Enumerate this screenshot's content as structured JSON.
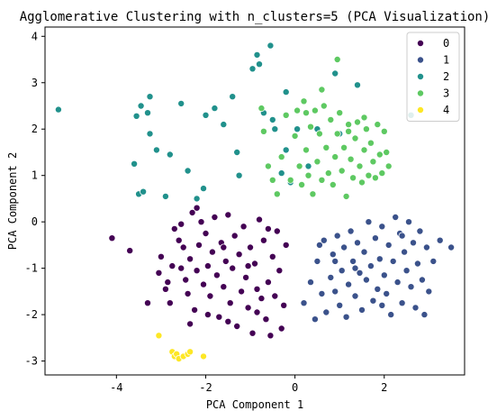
{
  "chart_data": {
    "type": "scatter",
    "title": "Agglomerative Clustering with n_clusters=5 (PCA Visualization)",
    "xlabel": "PCA Component 1",
    "ylabel": "PCA Component 2",
    "xlim": [
      -5.6,
      3.8
    ],
    "ylim": [
      -3.3,
      4.2
    ],
    "xticks": [
      -4,
      -2,
      0,
      2
    ],
    "yticks": [
      -3,
      -2,
      -1,
      0,
      1,
      2,
      3,
      4
    ],
    "grid": false,
    "legend_position": "top-right",
    "series": [
      {
        "name": "0",
        "color": "#440154",
        "points": [
          [
            -4.1,
            -0.35
          ],
          [
            -3.7,
            -0.62
          ],
          [
            -3.3,
            -1.75
          ],
          [
            -3.05,
            -1.1
          ],
          [
            -3.0,
            -0.75
          ],
          [
            -2.9,
            -1.45
          ],
          [
            -2.85,
            -1.3
          ],
          [
            -2.75,
            -0.95
          ],
          [
            -2.7,
            -0.15
          ],
          [
            -2.6,
            -0.4
          ],
          [
            -2.55,
            -1.0
          ],
          [
            -2.5,
            -0.55
          ],
          [
            -2.45,
            -1.25
          ],
          [
            -2.4,
            -1.55
          ],
          [
            -2.35,
            -0.8
          ],
          [
            -2.3,
            0.2
          ],
          [
            -2.25,
            -1.9
          ],
          [
            -2.2,
            -1.05
          ],
          [
            -2.15,
            -0.5
          ],
          [
            -2.1,
            0.0
          ],
          [
            -2.05,
            -1.35
          ],
          [
            -2.0,
            -0.25
          ],
          [
            -1.95,
            -0.95
          ],
          [
            -1.9,
            -1.6
          ],
          [
            -1.85,
            -0.65
          ],
          [
            -1.8,
            0.1
          ],
          [
            -1.75,
            -1.15
          ],
          [
            -1.7,
            -2.05
          ],
          [
            -1.65,
            -0.45
          ],
          [
            -1.6,
            -1.4
          ],
          [
            -1.55,
            -0.85
          ],
          [
            -1.5,
            0.15
          ],
          [
            -1.45,
            -1.75
          ],
          [
            -1.4,
            -1.0
          ],
          [
            -1.35,
            -0.3
          ],
          [
            -1.3,
            -2.25
          ],
          [
            -1.25,
            -0.7
          ],
          [
            -1.2,
            -1.5
          ],
          [
            -1.15,
            -0.1
          ],
          [
            -1.1,
            -1.2
          ],
          [
            -1.05,
            -1.85
          ],
          [
            -1.0,
            -0.55
          ],
          [
            -0.95,
            -2.4
          ],
          [
            -0.9,
            -0.9
          ],
          [
            -0.85,
            -1.45
          ],
          [
            -0.8,
            0.05
          ],
          [
            -0.75,
            -1.65
          ],
          [
            -0.7,
            -0.4
          ],
          [
            -0.65,
            -2.1
          ],
          [
            -0.6,
            -1.3
          ],
          [
            -0.55,
            -2.45
          ],
          [
            -0.5,
            -0.75
          ],
          [
            -0.45,
            -1.6
          ],
          [
            -0.4,
            -0.2
          ],
          [
            -0.35,
            -1.05
          ],
          [
            -0.3,
            -2.3
          ],
          [
            -0.25,
            -1.8
          ],
          [
            -0.2,
            -0.5
          ],
          [
            -2.55,
            -0.05
          ],
          [
            -2.2,
            0.3
          ],
          [
            -1.6,
            -0.55
          ],
          [
            -1.05,
            -0.95
          ],
          [
            -0.6,
            -0.15
          ],
          [
            -2.8,
            -1.75
          ],
          [
            -2.35,
            -2.2
          ],
          [
            -1.95,
            -2.0
          ],
          [
            -1.5,
            -2.15
          ],
          [
            -0.85,
            -1.95
          ]
        ]
      },
      {
        "name": "1",
        "color": "#3b528b",
        "points": [
          [
            0.2,
            -1.75
          ],
          [
            0.35,
            -1.3
          ],
          [
            0.45,
            -2.1
          ],
          [
            0.5,
            -0.85
          ],
          [
            0.6,
            -1.55
          ],
          [
            0.65,
            -0.4
          ],
          [
            0.7,
            -1.95
          ],
          [
            0.8,
            -1.2
          ],
          [
            0.85,
            -0.7
          ],
          [
            0.9,
            -1.5
          ],
          [
            0.95,
            -0.3
          ],
          [
            1.0,
            -1.8
          ],
          [
            1.05,
            -1.05
          ],
          [
            1.1,
            -0.55
          ],
          [
            1.15,
            -2.05
          ],
          [
            1.2,
            -1.35
          ],
          [
            1.25,
            -0.2
          ],
          [
            1.3,
            -0.85
          ],
          [
            1.35,
            -1.6
          ],
          [
            1.4,
            -0.45
          ],
          [
            1.45,
            -1.1
          ],
          [
            1.5,
            -1.9
          ],
          [
            1.55,
            -0.65
          ],
          [
            1.6,
            -1.25
          ],
          [
            1.65,
            0.0
          ],
          [
            1.7,
            -0.95
          ],
          [
            1.75,
            -1.7
          ],
          [
            1.8,
            -0.35
          ],
          [
            1.85,
            -1.45
          ],
          [
            1.9,
            -0.8
          ],
          [
            1.95,
            -0.1
          ],
          [
            2.0,
            -1.15
          ],
          [
            2.05,
            -1.55
          ],
          [
            2.1,
            -0.5
          ],
          [
            2.15,
            -2.0
          ],
          [
            2.2,
            -0.85
          ],
          [
            2.25,
            0.1
          ],
          [
            2.3,
            -1.3
          ],
          [
            2.35,
            -0.25
          ],
          [
            2.4,
            -1.75
          ],
          [
            2.45,
            -0.65
          ],
          [
            2.5,
            -1.05
          ],
          [
            2.55,
            0.0
          ],
          [
            2.6,
            -1.4
          ],
          [
            2.65,
            -0.45
          ],
          [
            2.7,
            -1.85
          ],
          [
            2.75,
            -0.9
          ],
          [
            2.8,
            -0.2
          ],
          [
            2.85,
            -1.25
          ],
          [
            2.9,
            -2.0
          ],
          [
            2.95,
            -0.55
          ],
          [
            3.0,
            -1.5
          ],
          [
            3.1,
            -0.85
          ],
          [
            3.25,
            -0.4
          ],
          [
            3.5,
            -0.55
          ],
          [
            0.55,
            -0.5
          ],
          [
            1.35,
            -1.0
          ],
          [
            2.4,
            -0.3
          ],
          [
            1.95,
            -1.8
          ],
          [
            0.9,
            -0.85
          ]
        ]
      },
      {
        "name": "2",
        "color": "#21918c",
        "points": [
          [
            -5.3,
            2.42
          ],
          [
            -3.6,
            1.25
          ],
          [
            -3.55,
            2.28
          ],
          [
            -3.5,
            0.6
          ],
          [
            -3.45,
            2.5
          ],
          [
            -3.4,
            0.65
          ],
          [
            -3.3,
            2.35
          ],
          [
            -3.25,
            2.7
          ],
          [
            -3.25,
            1.9
          ],
          [
            -3.1,
            1.55
          ],
          [
            -2.9,
            0.55
          ],
          [
            -2.8,
            1.45
          ],
          [
            -2.55,
            2.55
          ],
          [
            -2.4,
            1.1
          ],
          [
            -2.2,
            0.5
          ],
          [
            -2.05,
            0.72
          ],
          [
            -2.0,
            2.3
          ],
          [
            -1.8,
            2.45
          ],
          [
            -1.6,
            2.1
          ],
          [
            -1.4,
            2.7
          ],
          [
            -1.3,
            1.5
          ],
          [
            -1.25,
            1.0
          ],
          [
            -0.95,
            3.3
          ],
          [
            -0.8,
            3.4
          ],
          [
            -0.7,
            2.35
          ],
          [
            -0.5,
            2.2
          ],
          [
            -0.45,
            2.0
          ],
          [
            -0.3,
            1.05
          ],
          [
            -0.2,
            1.55
          ],
          [
            -0.1,
            0.85
          ],
          [
            0.05,
            2.0
          ],
          [
            0.3,
            1.2
          ],
          [
            0.5,
            2.0
          ],
          [
            0.9,
            3.2
          ],
          [
            1.0,
            1.9
          ],
          [
            1.4,
            2.95
          ],
          [
            -0.55,
            3.8
          ],
          [
            2.6,
            2.3
          ],
          [
            -0.2,
            2.8
          ],
          [
            -0.85,
            3.6
          ]
        ]
      },
      {
        "name": "3",
        "color": "#5ec962",
        "points": [
          [
            -0.75,
            2.45
          ],
          [
            -0.7,
            1.95
          ],
          [
            -0.6,
            1.2
          ],
          [
            -0.5,
            0.9
          ],
          [
            -0.4,
            0.6
          ],
          [
            -0.3,
            1.4
          ],
          [
            -0.2,
            2.3
          ],
          [
            -0.1,
            0.9
          ],
          [
            0.0,
            1.85
          ],
          [
            0.05,
            2.4
          ],
          [
            0.1,
            1.2
          ],
          [
            0.15,
            0.8
          ],
          [
            0.2,
            2.6
          ],
          [
            0.25,
            1.55
          ],
          [
            0.3,
            1.0
          ],
          [
            0.35,
            2.05
          ],
          [
            0.4,
            0.6
          ],
          [
            0.45,
            2.4
          ],
          [
            0.5,
            1.3
          ],
          [
            0.55,
            1.9
          ],
          [
            0.6,
            0.9
          ],
          [
            0.65,
            2.5
          ],
          [
            0.7,
            1.6
          ],
          [
            0.75,
            1.05
          ],
          [
            0.8,
            2.2
          ],
          [
            0.85,
            0.8
          ],
          [
            0.9,
            1.4
          ],
          [
            0.95,
            1.9
          ],
          [
            1.0,
            2.35
          ],
          [
            1.05,
            1.1
          ],
          [
            1.1,
            1.6
          ],
          [
            1.15,
            0.55
          ],
          [
            1.2,
            2.1
          ],
          [
            1.25,
            1.35
          ],
          [
            1.3,
            0.95
          ],
          [
            1.35,
            1.8
          ],
          [
            1.4,
            2.15
          ],
          [
            1.45,
            1.2
          ],
          [
            1.5,
            0.85
          ],
          [
            1.55,
            1.55
          ],
          [
            1.6,
            2.0
          ],
          [
            1.65,
            1.0
          ],
          [
            1.7,
            1.7
          ],
          [
            1.75,
            1.3
          ],
          [
            1.8,
            0.95
          ],
          [
            1.85,
            2.1
          ],
          [
            1.9,
            1.45
          ],
          [
            1.95,
            1.05
          ],
          [
            2.0,
            1.95
          ],
          [
            2.05,
            1.5
          ],
          [
            2.1,
            1.2
          ],
          [
            0.95,
            3.5
          ],
          [
            0.6,
            2.85
          ],
          [
            0.25,
            2.35
          ],
          [
            1.55,
            2.25
          ],
          [
            1.2,
            1.95
          ]
        ]
      },
      {
        "name": "4",
        "color": "#fde725",
        "points": [
          [
            -3.05,
            -2.45
          ],
          [
            -2.75,
            -2.8
          ],
          [
            -2.7,
            -2.9
          ],
          [
            -2.65,
            -2.85
          ],
          [
            -2.6,
            -2.95
          ],
          [
            -2.5,
            -2.9
          ],
          [
            -2.4,
            -2.85
          ],
          [
            -2.35,
            -2.8
          ],
          [
            -2.05,
            -2.9
          ]
        ]
      }
    ]
  }
}
